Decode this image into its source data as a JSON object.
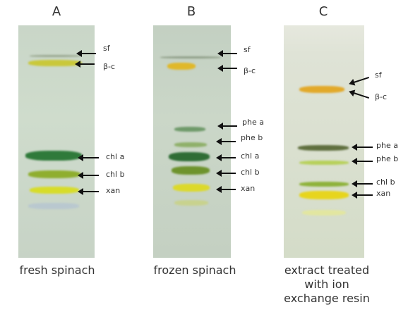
{
  "columns": [
    {
      "letter": "A",
      "caption": [
        "fresh spinach"
      ],
      "labels": [
        "sf",
        "β-c",
        "chl a",
        "chl b",
        "xan"
      ]
    },
    {
      "letter": "B",
      "caption": [
        "frozen spinach"
      ],
      "labels": [
        "sf",
        "β-c",
        "phe a",
        "phe b",
        "chl a",
        "chl b",
        "xan"
      ]
    },
    {
      "letter": "C",
      "caption": [
        "extract treated",
        "with ion",
        "exchange resin"
      ],
      "labels": [
        "sf",
        "β-c",
        "phe a",
        "phe b",
        "chl b",
        "xan"
      ]
    }
  ]
}
